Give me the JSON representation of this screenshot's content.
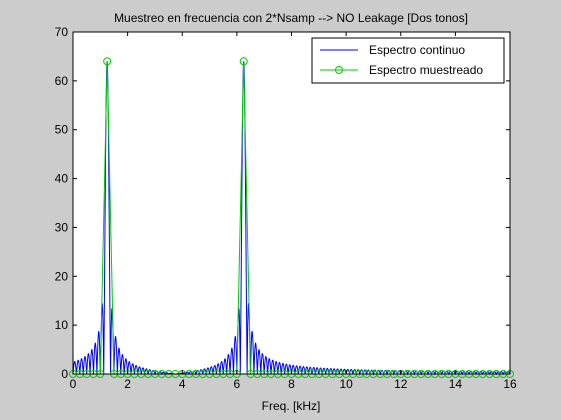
{
  "chart_data": {
    "type": "line",
    "title": "Muestreo en frecuencia con 2*Nsamp --> NO Leakage [Dos tonos]",
    "xlabel": "Freq. [kHz]",
    "ylabel": "",
    "xlim": [
      0,
      16
    ],
    "ylim": [
      0,
      70
    ],
    "xticks": [
      "0",
      "2",
      "4",
      "6",
      "8",
      "10",
      "12",
      "14",
      "16"
    ],
    "yticks": [
      "0",
      "10",
      "20",
      "30",
      "40",
      "50",
      "60",
      "70"
    ],
    "legend_position": "top-right",
    "series": [
      {
        "name": "Espectro continuo",
        "color": "#0000ff",
        "style": "line",
        "tones": [
          {
            "freq": 1.25,
            "amplitude": 64
          },
          {
            "freq": 6.25,
            "amplitude": 64
          }
        ],
        "lobe_spacing": 0.125
      },
      {
        "name": "Espectro muestreado",
        "color": "#00cc00",
        "style": "stem-circle",
        "sample_spacing": 0.25,
        "x_range": [
          0,
          16
        ],
        "nonzero": [
          {
            "x": 1.25,
            "y": 64
          },
          {
            "x": 6.25,
            "y": 64
          }
        ]
      }
    ]
  }
}
